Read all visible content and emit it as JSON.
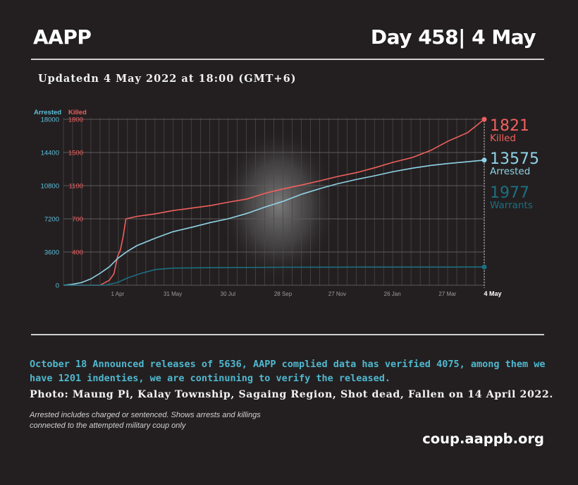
{
  "header": {
    "brand": "AAPP",
    "day": "Day 458| 4 May",
    "updated": "Updatedn 4 May 2022 at 18:00 (GMT+6)"
  },
  "chart_data": {
    "type": "line",
    "axis_labels": {
      "left": "Arrested",
      "right": "Killed"
    },
    "arrested_ticks": [
      0,
      3600,
      7200,
      10800,
      14400,
      18000
    ],
    "killed_ticks": [
      0,
      400,
      700,
      1100,
      1500,
      1800
    ],
    "x_tick_labels": [
      "1 Apr",
      "31 May",
      "30 Jul",
      "28 Sep",
      "27 Nov",
      "26 Jan",
      "27 Mar",
      "4 May"
    ],
    "x_range_days": [
      0,
      458
    ],
    "x_tick_days": [
      59,
      119,
      179,
      239,
      298,
      358,
      418,
      458
    ],
    "series": [
      {
        "name": "Killed",
        "axis": "killed",
        "color": "#f0605e",
        "points": [
          [
            0,
            0
          ],
          [
            20,
            0
          ],
          [
            40,
            0
          ],
          [
            50,
            60
          ],
          [
            55,
            140
          ],
          [
            59,
            350
          ],
          [
            62,
            420
          ],
          [
            65,
            540
          ],
          [
            68,
            700
          ],
          [
            80,
            730
          ],
          [
            100,
            760
          ],
          [
            119,
            800
          ],
          [
            140,
            830
          ],
          [
            160,
            860
          ],
          [
            179,
            900
          ],
          [
            200,
            940
          ],
          [
            220,
            1010
          ],
          [
            239,
            1060
          ],
          [
            260,
            1110
          ],
          [
            280,
            1160
          ],
          [
            298,
            1210
          ],
          [
            320,
            1260
          ],
          [
            340,
            1320
          ],
          [
            358,
            1380
          ],
          [
            380,
            1440
          ],
          [
            400,
            1520
          ],
          [
            418,
            1600
          ],
          [
            440,
            1680
          ],
          [
            458,
            1821
          ]
        ],
        "end_value": "1821",
        "end_label": "Killed"
      },
      {
        "name": "Arrested",
        "axis": "arrested",
        "color": "#8fd3e6",
        "points": [
          [
            0,
            0
          ],
          [
            10,
            100
          ],
          [
            20,
            300
          ],
          [
            30,
            700
          ],
          [
            40,
            1300
          ],
          [
            50,
            2000
          ],
          [
            59,
            2900
          ],
          [
            70,
            3700
          ],
          [
            80,
            4300
          ],
          [
            90,
            4700
          ],
          [
            100,
            5100
          ],
          [
            119,
            5800
          ],
          [
            140,
            6300
          ],
          [
            160,
            6800
          ],
          [
            179,
            7200
          ],
          [
            200,
            7800
          ],
          [
            220,
            8500
          ],
          [
            239,
            9100
          ],
          [
            260,
            9900
          ],
          [
            280,
            10500
          ],
          [
            298,
            11000
          ],
          [
            320,
            11500
          ],
          [
            340,
            11900
          ],
          [
            358,
            12300
          ],
          [
            380,
            12700
          ],
          [
            400,
            13000
          ],
          [
            418,
            13200
          ],
          [
            440,
            13400
          ],
          [
            458,
            13575
          ]
        ],
        "end_value": "13575",
        "end_label": "Arrested"
      },
      {
        "name": "Warrants",
        "axis": "arrested",
        "color": "#1c6f82",
        "points": [
          [
            0,
            0
          ],
          [
            45,
            0
          ],
          [
            59,
            300
          ],
          [
            70,
            800
          ],
          [
            85,
            1300
          ],
          [
            100,
            1700
          ],
          [
            119,
            1850
          ],
          [
            160,
            1900
          ],
          [
            239,
            1950
          ],
          [
            298,
            1960
          ],
          [
            358,
            1965
          ],
          [
            418,
            1970
          ],
          [
            458,
            1977
          ]
        ],
        "end_value": "1977",
        "end_label": "Warrants"
      }
    ]
  },
  "footer": {
    "note": "October 18 Announced releases of 5636, AAPP complied data has verified 4075, among them we have 1201 indenties, we are continuning to verify the released.",
    "photo_caption": "Photo: Maung Pi, Kalay Township, Sagaing Region, Shot dead, Fallen on 14 April 2022.",
    "footnote": "Arrested includes charged or sentenced. Shows arrests and killings connected to the attempted military coup only",
    "url": "coup.aappb.org"
  }
}
